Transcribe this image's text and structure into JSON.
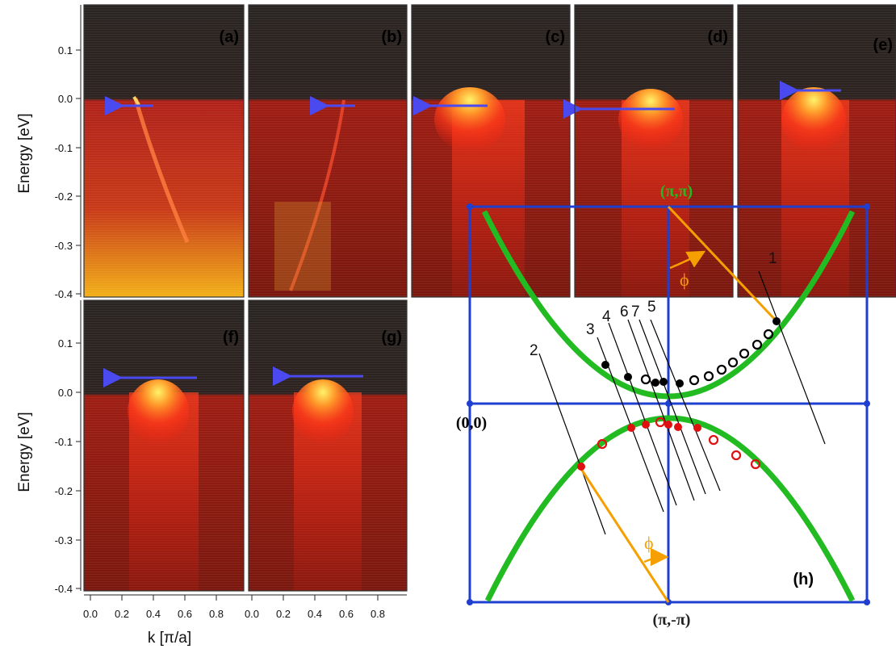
{
  "figure": {
    "y_axis_title": "Energy [eV]",
    "x_axis_title": "k [π/a]",
    "y_ticks": [
      "0.1",
      "0.0",
      "-0.1",
      "-0.2",
      "-0.3",
      "-0.4"
    ],
    "x_ticks": [
      "0.0",
      "0.2",
      "0.4",
      "0.6",
      "0.8",
      "0.0",
      "0.2",
      "0.4",
      "0.6",
      "0.8"
    ],
    "panels": [
      {
        "label": "(a)",
        "kind": "dispersion"
      },
      {
        "label": "(b)",
        "kind": "dispersion"
      },
      {
        "label": "(c)",
        "kind": "gap"
      },
      {
        "label": "(d)",
        "kind": "gap"
      },
      {
        "label": "(e)",
        "kind": "gap"
      },
      {
        "label": "(f)",
        "kind": "gap"
      },
      {
        "label": "(g)",
        "kind": "gap"
      }
    ],
    "brillouin_zone": {
      "label": "(h)",
      "corner_top": "(π,π)",
      "corner_left": "(0,0)",
      "corner_bottom": "(π,-π)",
      "angle_symbol": "ϕ",
      "cut_labels": [
        "1",
        "2",
        "3",
        "4",
        "6",
        "7",
        "5"
      ],
      "colors": {
        "zone_lines": "#1f3fd0",
        "fermi_surface": "#22bb22",
        "cut_angle": "#f5a000",
        "filled_upper": "#000000",
        "filled_lower": "#e01010"
      }
    }
  }
}
